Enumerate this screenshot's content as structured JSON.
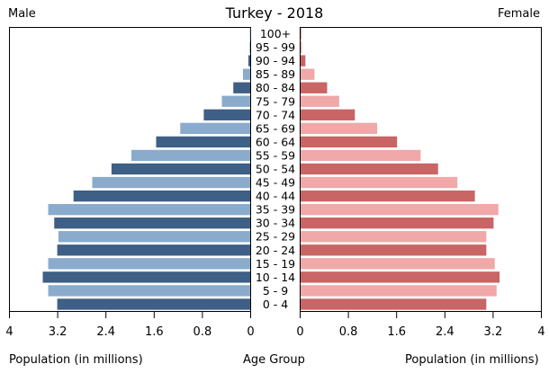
{
  "chart_data": {
    "type": "bar",
    "title": "Turkey - 2018",
    "left_label": "Male",
    "right_label": "Female",
    "xlabel_left": "Population (in millions)",
    "xlabel_center": "Age Group",
    "xlabel_right": "Population (in millions)",
    "xlim": [
      0,
      4
    ],
    "ticks": [
      "4",
      "3.2",
      "2.4",
      "1.6",
      "0.8",
      "0"
    ],
    "ticks_right": [
      "0",
      "0.8",
      "1.6",
      "2.4",
      "3.2",
      "4"
    ],
    "categories": [
      "100+",
      "95 - 99",
      "90 - 94",
      "85 - 89",
      "80 - 84",
      "75 - 79",
      "70 - 74",
      "65 - 69",
      "60 - 64",
      "55 - 59",
      "50 - 54",
      "45 - 49",
      "40 - 44",
      "35 - 39",
      "30 - 34",
      "25 - 29",
      "20 - 24",
      "15 - 19",
      "10 - 14",
      "5 - 9",
      "0 - 4"
    ],
    "series": [
      {
        "name": "Male",
        "values": [
          0.003,
          0.01,
          0.03,
          0.12,
          0.28,
          0.47,
          0.77,
          1.16,
          1.56,
          1.97,
          2.3,
          2.62,
          2.93,
          3.35,
          3.25,
          3.18,
          3.2,
          3.35,
          3.44,
          3.35,
          3.2
        ]
      },
      {
        "name": "Female",
        "values": [
          0.005,
          0.02,
          0.08,
          0.23,
          0.44,
          0.64,
          0.9,
          1.27,
          1.6,
          1.99,
          2.28,
          2.6,
          2.89,
          3.28,
          3.2,
          3.08,
          3.08,
          3.22,
          3.3,
          3.25,
          3.08
        ]
      }
    ],
    "colors": {
      "male_dark": "#3e5f86",
      "male_light": "#8aabcc",
      "female_dark": "#c96565",
      "female_light": "#f0a8a8",
      "frame": "#000000"
    }
  }
}
